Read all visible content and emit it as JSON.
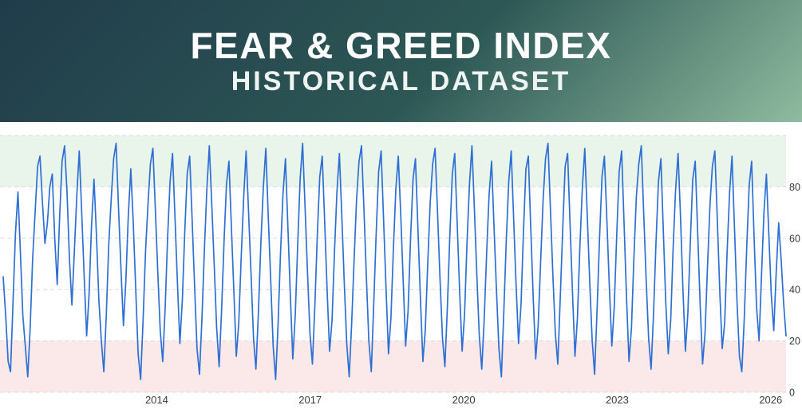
{
  "header": {
    "title": "FEAR & GREED INDEX",
    "subtitle": "HISTORICAL DATASET",
    "banner_gradient": [
      "#203c4b",
      "#2d5755",
      "#8fbb9f"
    ]
  },
  "chart_data": {
    "type": "line",
    "title": "Fear & Greed Index — Historical Dataset",
    "xlabel": "",
    "ylabel": "",
    "x_start": 2011.0,
    "x_end": 2026.3,
    "x_ticks": [
      2014,
      2017,
      2020,
      2023,
      2026
    ],
    "y_ticks": [
      80,
      60,
      40,
      20,
      0
    ],
    "ylim": [
      0,
      100
    ],
    "grid": "dashed",
    "gridline_values": [
      0,
      20,
      40,
      60,
      80,
      100
    ],
    "legend": "none",
    "line_color": "#2e6fd3",
    "tick_color": "#3a3a3a",
    "grid_color": "#d9d9d9",
    "bands": [
      {
        "name": "greed-zone",
        "from": 80,
        "to": 100,
        "color": "#e9f4eb"
      },
      {
        "name": "fear-zone",
        "from": 0,
        "to": 20,
        "color": "#fbe9e9"
      }
    ],
    "series": [
      {
        "name": "Fear & Greed Index",
        "values": [
          45,
          30,
          12,
          8,
          35,
          62,
          78,
          55,
          30,
          18,
          6,
          25,
          52,
          70,
          88,
          92,
          74,
          58,
          66,
          80,
          85,
          60,
          42,
          68,
          90,
          96,
          78,
          52,
          34,
          55,
          77,
          94,
          70,
          45,
          22,
          38,
          65,
          83,
          61,
          36,
          20,
          8,
          30,
          57,
          75,
          91,
          97,
          72,
          48,
          26,
          44,
          69,
          87,
          66,
          40,
          15,
          5,
          28,
          55,
          73,
          89,
          95,
          71,
          47,
          24,
          12,
          33,
          60,
          82,
          93,
          68,
          43,
          19,
          36,
          63,
          85,
          92,
          67,
          41,
          17,
          7,
          29,
          56,
          79,
          96,
          73,
          49,
          25,
          10,
          32,
          59,
          81,
          90,
          64,
          39,
          14,
          27,
          53,
          76,
          94,
          70,
          46,
          21,
          9,
          31,
          58,
          80,
          95,
          69,
          44,
          18,
          5,
          26,
          54,
          77,
          91,
          65,
          38,
          13,
          30,
          57,
          83,
          97,
          72,
          47,
          23,
          11,
          34,
          61,
          84,
          92,
          66,
          40,
          16,
          28,
          55,
          78,
          93,
          68,
          42,
          19,
          6,
          27,
          52,
          75,
          90,
          96,
          71,
          45,
          20,
          8,
          35,
          62,
          86,
          94,
          67,
          41,
          15,
          29,
          56,
          79,
          92,
          69,
          43,
          18,
          32,
          60,
          83,
          91,
          64,
          37,
          12,
          24,
          50,
          74,
          89,
          95,
          70,
          44,
          21,
          10,
          33,
          61,
          85,
          93,
          66,
          39,
          16,
          30,
          58,
          81,
          96,
          72,
          46,
          22,
          9,
          28,
          54,
          77,
          90,
          65,
          40,
          17,
          6,
          31,
          59,
          82,
          94,
          68,
          42,
          19,
          34,
          62,
          87,
          92,
          63,
          36,
          13,
          26,
          51,
          75,
          91,
          97,
          71,
          45,
          23,
          11,
          37,
          64,
          88,
          93,
          65,
          38,
          14,
          29,
          57,
          80,
          95,
          69,
          43,
          20,
          7,
          32,
          60,
          84,
          92,
          67,
          41,
          18,
          33,
          61,
          86,
          94,
          66,
          37,
          12,
          25,
          52,
          76,
          89,
          96,
          70,
          44,
          21,
          9,
          30,
          58,
          82,
          91,
          63,
          35,
          15,
          28,
          56,
          79,
          93,
          68,
          40,
          16,
          31,
          59,
          83,
          90,
          62,
          34,
          11,
          23,
          49,
          73,
          88,
          94,
          67,
          39,
          17,
          27,
          55,
          78,
          92,
          64,
          36,
          14,
          8,
          29,
          57,
          81,
          90,
          60,
          33,
          20,
          45,
          70,
          85,
          61,
          38,
          24,
          47,
          66,
          52,
          35,
          22
        ]
      }
    ]
  }
}
